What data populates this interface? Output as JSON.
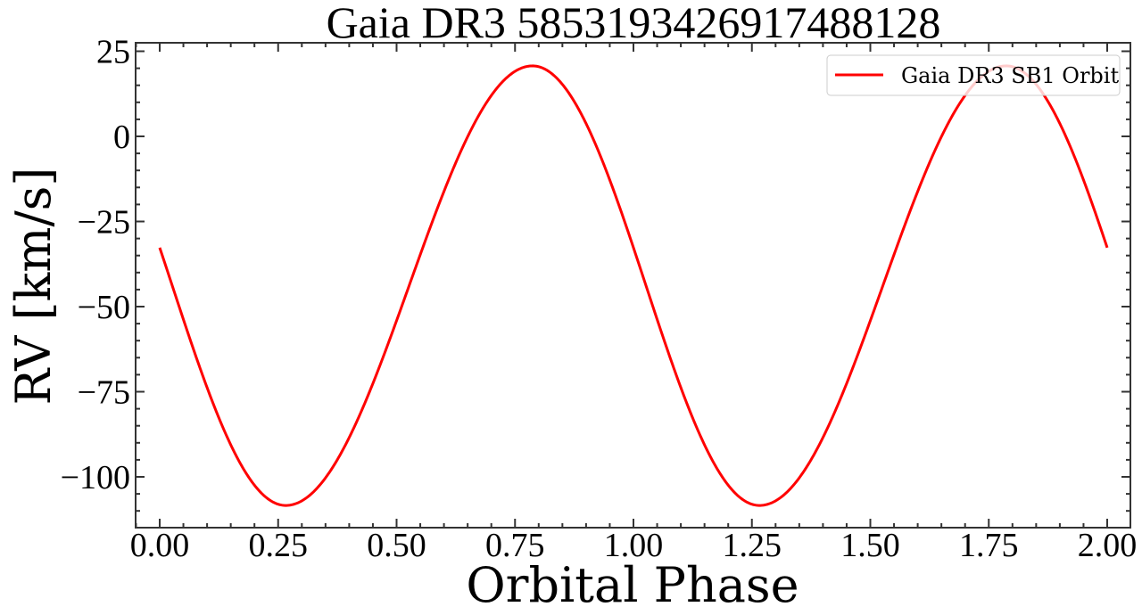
{
  "chart_data": {
    "type": "line",
    "title": "Gaia DR3 5853193426917488128",
    "xlabel": "Orbital Phase",
    "ylabel": "RV [km/s]",
    "xlim": [
      -0.05,
      2.05
    ],
    "ylim": [
      -115,
      27.7
    ],
    "xticks": [
      0.0,
      0.25,
      0.5,
      0.75,
      1.0,
      1.25,
      1.5,
      1.75,
      2.0
    ],
    "xtick_labels": [
      "0.00",
      "0.25",
      "0.50",
      "0.75",
      "1.00",
      "1.25",
      "1.50",
      "1.75",
      "2.00"
    ],
    "yticks": [
      25,
      0,
      -25,
      -50,
      -75,
      -100
    ],
    "ytick_labels": [
      "25",
      "0",
      "−25",
      "−50",
      "−75",
      "−100"
    ],
    "x_minor_step": 0.05,
    "y_minor_step": 5,
    "grid": false,
    "legend_position": "upper right",
    "series": [
      {
        "name": "Gaia DR3 SB1 Orbit",
        "color": "#ff0000",
        "x": [
          0.0,
          0.05,
          0.1,
          0.15,
          0.2,
          0.25,
          0.3,
          0.35,
          0.4,
          0.45,
          0.5,
          0.55,
          0.6,
          0.65,
          0.7,
          0.75,
          0.8,
          0.85,
          0.9,
          0.95,
          1.0,
          1.05,
          1.1,
          1.15,
          1.2,
          1.25,
          1.3,
          1.35,
          1.4,
          1.45,
          1.5,
          1.55,
          1.6,
          1.65,
          1.7,
          1.75,
          1.8,
          1.85,
          1.9,
          1.95,
          2.0
        ],
        "values": [
          -32.7,
          -53.8,
          -73.7,
          -90.6,
          -102.4,
          -108.1,
          -107.0,
          -100.3,
          -88.5,
          -72.6,
          -54.1,
          -34.7,
          -16.0,
          -0.1,
          12.0,
          19.1,
          20.4,
          15.3,
          3.8,
          -12.9,
          -32.7,
          -53.8,
          -73.7,
          -90.6,
          -102.4,
          -108.1,
          -107.0,
          -100.3,
          -88.5,
          -72.6,
          -54.1,
          -34.7,
          -16.0,
          -0.1,
          12.0,
          19.1,
          20.4,
          15.3,
          3.8,
          -12.9,
          -32.7
        ]
      }
    ],
    "model": {
      "gamma": -43.85,
      "K": 64.55,
      "phase_max": 0.787,
      "phase_min": 0.266
    }
  },
  "legend": {
    "items": [
      {
        "label": "Gaia DR3 SB1 Orbit",
        "color": "#ff0000"
      }
    ]
  }
}
